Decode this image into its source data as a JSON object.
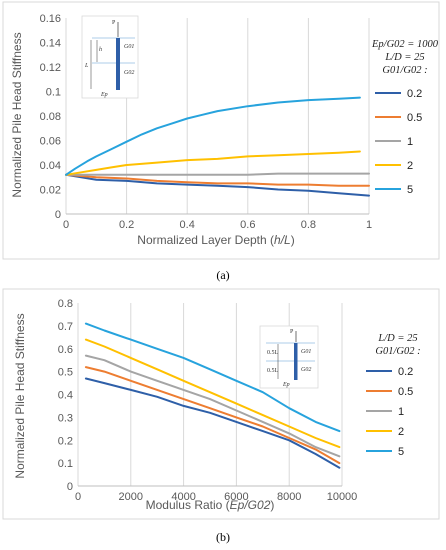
{
  "chart_data": [
    {
      "type": "line",
      "panel_label": "(a)",
      "xlabel_parts": [
        "Normalized Layer Depth (",
        "h/L",
        ")"
      ],
      "ylabel": "Normalized Pile Head Stiffness",
      "xlim": [
        0,
        1
      ],
      "ylim": [
        0,
        0.16
      ],
      "xticks": [
        0,
        0.2,
        0.4,
        0.6,
        0.8,
        1
      ],
      "xtick_labels": [
        "0",
        "0.2",
        "0.4",
        "0.6",
        "0.8",
        "1"
      ],
      "yticks": [
        0,
        0.02,
        0.04,
        0.06,
        0.08,
        0.1,
        0.12,
        0.14,
        0.16
      ],
      "ytick_labels": [
        "0",
        "0.02",
        "0.04",
        "0.06",
        "0.08",
        "0.1",
        "0.12",
        "0.14",
        "0.16"
      ],
      "grid": "vertical",
      "legend_position": "right",
      "legend_header": [
        "Ep/G02 = 1000",
        "L/D = 25",
        "G01/G02 :"
      ],
      "series": [
        {
          "name": "0.2",
          "color": "#2e5fa8",
          "x": [
            0,
            0.05,
            0.1,
            0.2,
            0.3,
            0.4,
            0.5,
            0.6,
            0.7,
            0.8,
            0.9,
            1.0
          ],
          "y": [
            0.032,
            0.03,
            0.028,
            0.027,
            0.025,
            0.024,
            0.023,
            0.022,
            0.02,
            0.019,
            0.017,
            0.015
          ]
        },
        {
          "name": "0.5",
          "color": "#ed7d31",
          "x": [
            0,
            0.05,
            0.1,
            0.2,
            0.3,
            0.4,
            0.5,
            0.6,
            0.7,
            0.8,
            0.9,
            1.0
          ],
          "y": [
            0.032,
            0.031,
            0.03,
            0.029,
            0.027,
            0.026,
            0.025,
            0.025,
            0.024,
            0.024,
            0.023,
            0.023
          ]
        },
        {
          "name": "1",
          "color": "#a5a5a5",
          "x": [
            0,
            0.1,
            0.2,
            0.3,
            0.4,
            0.5,
            0.6,
            0.7,
            0.8,
            0.9,
            1.0
          ],
          "y": [
            0.032,
            0.032,
            0.032,
            0.032,
            0.032,
            0.032,
            0.032,
            0.033,
            0.033,
            0.033,
            0.033
          ]
        },
        {
          "name": "2",
          "color": "#ffc000",
          "x": [
            0,
            0.05,
            0.1,
            0.15,
            0.2,
            0.3,
            0.4,
            0.5,
            0.6,
            0.7,
            0.8,
            0.9,
            0.97
          ],
          "y": [
            0.032,
            0.034,
            0.036,
            0.038,
            0.04,
            0.042,
            0.044,
            0.045,
            0.047,
            0.048,
            0.049,
            0.05,
            0.051
          ]
        },
        {
          "name": "5",
          "color": "#27a3dd",
          "x": [
            0,
            0.03,
            0.07,
            0.1,
            0.15,
            0.2,
            0.25,
            0.3,
            0.35,
            0.4,
            0.45,
            0.5,
            0.6,
            0.7,
            0.8,
            0.9,
            0.97
          ],
          "y": [
            0.032,
            0.037,
            0.043,
            0.047,
            0.053,
            0.059,
            0.065,
            0.07,
            0.074,
            0.078,
            0.081,
            0.084,
            0.088,
            0.091,
            0.093,
            0.094,
            0.095
          ]
        }
      ]
    },
    {
      "type": "line",
      "panel_label": "(b)",
      "xlabel_parts": [
        "Modulus Ratio (",
        "Ep/G02",
        ")"
      ],
      "ylabel": "Normalized Pile Head Stiffness",
      "xlim": [
        0,
        10000
      ],
      "ylim": [
        0,
        0.8
      ],
      "xticks": [
        0,
        2000,
        4000,
        6000,
        8000,
        10000
      ],
      "xtick_labels": [
        "0",
        "2000",
        "4000",
        "6000",
        "8000",
        "10000"
      ],
      "yticks": [
        0,
        0.1,
        0.2,
        0.3,
        0.4,
        0.5,
        0.6,
        0.7,
        0.8
      ],
      "ytick_labels": [
        "0",
        "0.1",
        "0.2",
        "0.3",
        "0.4",
        "0.5",
        "0.6",
        "0.7",
        "0.8"
      ],
      "grid": "vertical",
      "legend_position": "right",
      "legend_header": [
        "L/D = 25",
        "G01/G02 :"
      ],
      "series": [
        {
          "name": "0.2",
          "color": "#2e5fa8",
          "x": [
            300,
            1000,
            2000,
            3000,
            4000,
            5000,
            6000,
            7000,
            8000,
            9000,
            9900
          ],
          "y": [
            0.47,
            0.45,
            0.42,
            0.39,
            0.35,
            0.32,
            0.28,
            0.24,
            0.2,
            0.14,
            0.08
          ]
        },
        {
          "name": "0.5",
          "color": "#ed7d31",
          "x": [
            300,
            1000,
            2000,
            3000,
            4000,
            5000,
            6000,
            7000,
            8000,
            9000,
            9900
          ],
          "y": [
            0.52,
            0.5,
            0.46,
            0.42,
            0.38,
            0.34,
            0.3,
            0.26,
            0.21,
            0.16,
            0.1
          ]
        },
        {
          "name": "1",
          "color": "#a5a5a5",
          "x": [
            300,
            1000,
            2000,
            3000,
            4000,
            5000,
            6000,
            7000,
            8000,
            9000,
            9900
          ],
          "y": [
            0.57,
            0.55,
            0.5,
            0.46,
            0.42,
            0.38,
            0.33,
            0.28,
            0.23,
            0.17,
            0.13
          ]
        },
        {
          "name": "2",
          "color": "#ffc000",
          "x": [
            300,
            1000,
            2000,
            3000,
            4000,
            5000,
            6000,
            7000,
            8000,
            9000,
            9900
          ],
          "y": [
            0.64,
            0.61,
            0.56,
            0.51,
            0.46,
            0.41,
            0.36,
            0.31,
            0.26,
            0.21,
            0.17
          ]
        },
        {
          "name": "5",
          "color": "#27a3dd",
          "x": [
            300,
            1000,
            2000,
            3000,
            4000,
            5000,
            6000,
            7000,
            8000,
            9000,
            9900
          ],
          "y": [
            0.71,
            0.68,
            0.64,
            0.6,
            0.56,
            0.51,
            0.46,
            0.41,
            0.34,
            0.28,
            0.24
          ]
        }
      ]
    }
  ],
  "insets": [
    {
      "labels": [
        "P",
        "h",
        "G01",
        "L",
        "G02",
        "Ep"
      ]
    },
    {
      "labels": [
        "P",
        "0.5L",
        "G01",
        "0.5L",
        "G02",
        "Ep"
      ]
    }
  ]
}
